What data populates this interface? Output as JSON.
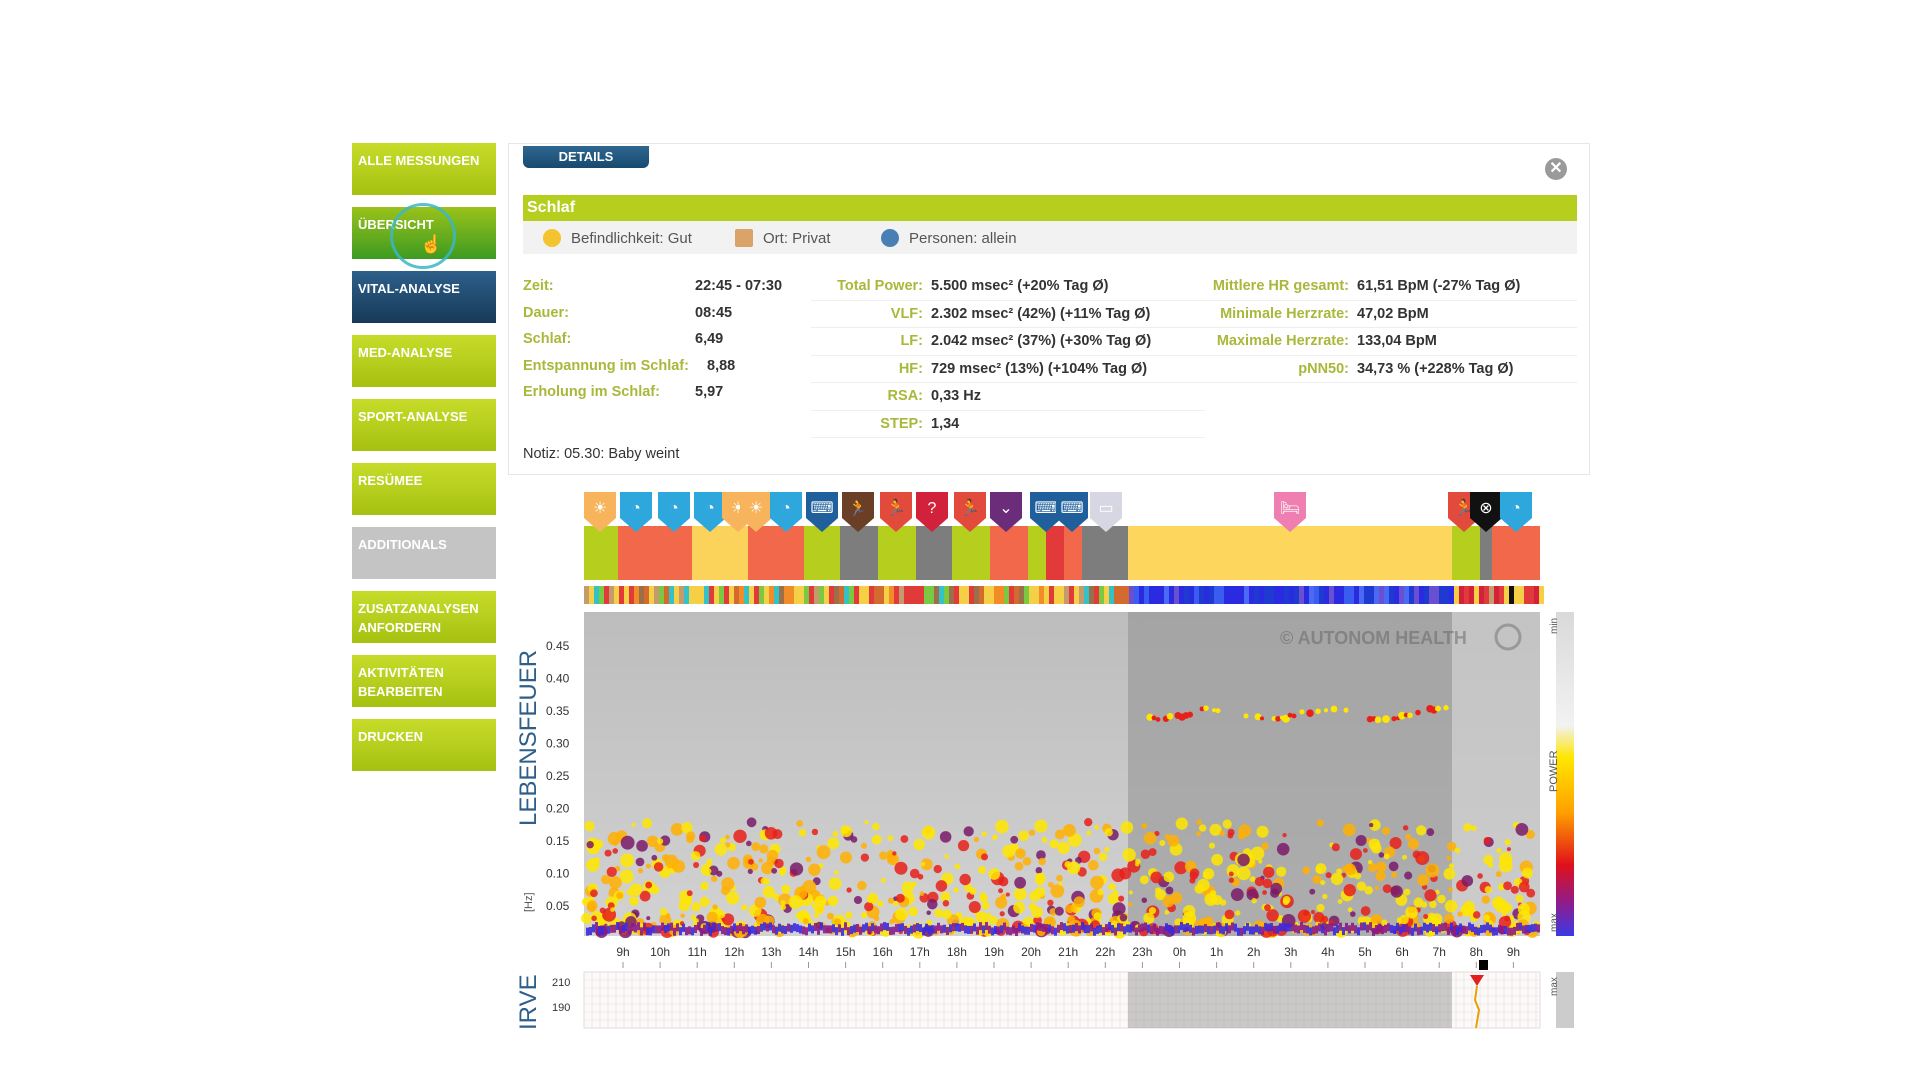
{
  "sidebar": {
    "items": [
      {
        "label": "ALLE MESSUNGEN",
        "style": "green"
      },
      {
        "label": "ÜBERSICHT",
        "style": "dkgreen"
      },
      {
        "label": "VITAL-ANALYSE",
        "style": "blue"
      },
      {
        "label": "MED-ANALYSE",
        "style": "green"
      },
      {
        "label": "SPORT-ANALYSE",
        "style": "green"
      },
      {
        "label": "RESÜMEE",
        "style": "green"
      },
      {
        "label": "ADDITIONALS",
        "style": "gray"
      },
      {
        "label": "ZUSATZANALYSEN ANFORDERN",
        "style": "green"
      },
      {
        "label": "AKTIVITÄTEN BEARBEITEN",
        "style": "green"
      },
      {
        "label": "DRUCKEN",
        "style": "green"
      }
    ]
  },
  "details": {
    "tab_label": "DETAILS",
    "close_icon": "close-icon",
    "title": "Schlaf",
    "meta": {
      "befindlichkeit": "Befindlichkeit: Gut",
      "ort": "Ort: Privat",
      "personen": "Personen: allein"
    },
    "col1": [
      {
        "label": "Zeit:",
        "value": "22:45 - 07:30"
      },
      {
        "label": "Dauer:",
        "value": "08:45"
      },
      {
        "label": "Schlaf:",
        "value": "6,49"
      },
      {
        "label": "Entspannung im Schlaf:",
        "value": "8,88"
      },
      {
        "label": "Erholung im Schlaf:",
        "value": "5,97"
      }
    ],
    "col2": [
      {
        "label": "Total Power:",
        "value": "5.500 msec² (+20% Tag Ø)"
      },
      {
        "label": "VLF:",
        "value": "2.302 msec² (42%) (+11% Tag Ø)"
      },
      {
        "label": "LF:",
        "value": "2.042 msec² (37%) (+30% Tag Ø)"
      },
      {
        "label": "HF:",
        "value": "729 msec² (13%) (+104% Tag Ø)"
      },
      {
        "label": "RSA:",
        "value": "0,33 Hz"
      },
      {
        "label": "STEP:",
        "value": "1,34"
      }
    ],
    "col3": [
      {
        "label": "Mittlere HR gesamt:",
        "value": "61,51 BpM (-27% Tag Ø)"
      },
      {
        "label": "Minimale Herzrate:",
        "value": "47,02 BpM"
      },
      {
        "label": "Maximale Herzrate:",
        "value": "133,04 BpM"
      },
      {
        "label": "pNN50:",
        "value": "34,73 % (+228% Tag Ø)"
      }
    ],
    "note": "Notiz: 05.30: Baby weint"
  },
  "chart": {
    "ylabel": "LEBENSFEUER",
    "yunit": "[Hz]",
    "bottom_label": "IRVE",
    "watermark": "© AUTONOM HEALTH",
    "legend_min": "min",
    "legend_max": "max",
    "legend_power": "POWER",
    "ytick_labels": [
      "0.45",
      "0.40",
      "0.35",
      "0.30",
      "0.25",
      "0.20",
      "0.15",
      "0.10",
      "0.05"
    ],
    "xtick_labels": [
      "9h",
      "10h",
      "11h",
      "12h",
      "13h",
      "14h",
      "15h",
      "16h",
      "17h",
      "18h",
      "19h",
      "20h",
      "21h",
      "22h",
      "23h",
      "0h",
      "1h",
      "2h",
      "3h",
      "4h",
      "5h",
      "6h",
      "7h",
      "8h",
      "9h"
    ],
    "bottom_ytick_labels": [
      "210",
      "190"
    ],
    "bottom_legend_max": "max",
    "activity_icons": [
      "sun-marker-icon",
      "thought-marker-icon",
      "thought-marker-icon",
      "thought-marker-icon",
      "sun-marker-icon",
      "thought-marker-icon",
      "keyboard-marker-icon",
      "runner-marker-icon",
      "runner-marker-icon",
      "question-marker-icon",
      "runner-marker-icon",
      "chevron-marker-icon",
      "keyboard-marker-icon",
      "keyboard-marker-icon",
      "monitor-marker-icon",
      "bed-marker-icon",
      "runner-marker-icon",
      "alarm-marker-icon",
      "thought-marker-icon"
    ],
    "colors": {
      "lime": "#b6cf1f",
      "tomato": "#f2684a",
      "yellow": "#fbd35a",
      "gray": "#7d7d7d",
      "night": "#fdd65d"
    }
  }
}
